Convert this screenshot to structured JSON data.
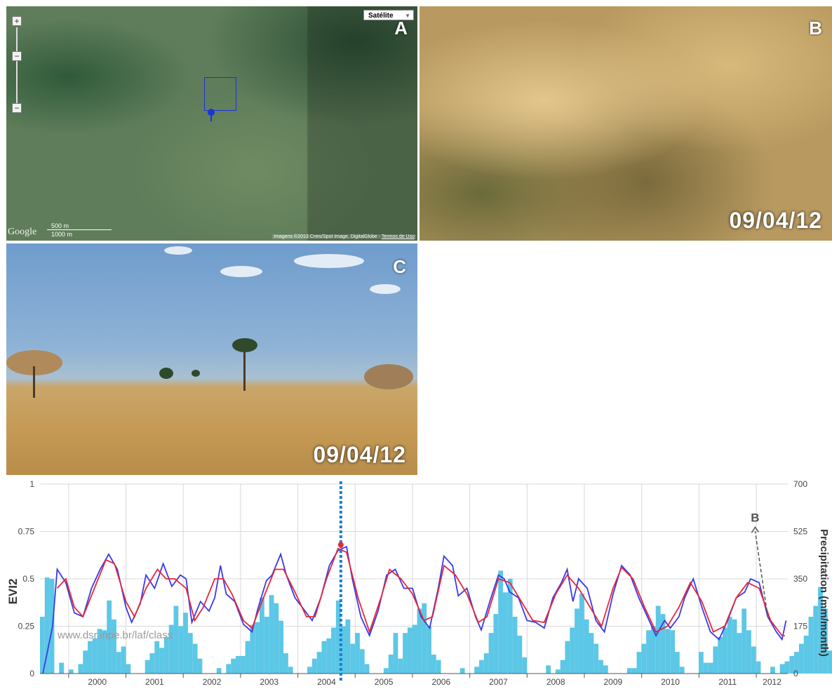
{
  "panels": {
    "a": {
      "letter": "A",
      "map_type": "Satélite",
      "zoom_in": "+",
      "zoom_mid": "−",
      "zoom_out": "−",
      "logo": "Google",
      "scale_small": "500 m",
      "scale_large": "1000 m",
      "attribution": "Imagens ©2013 Cnes/Spot Image, DigitalGlobe - ",
      "attribution_link": "Termos de Uso",
      "marker_icon": "map-pin-icon"
    },
    "b": {
      "letter": "B",
      "date": "09/04/12"
    },
    "c": {
      "letter": "C",
      "date": "09/04/12"
    }
  },
  "chart_data": {
    "type": "line",
    "watermark": "www.dsr.inpe.br/laf/class",
    "ylabel_left": "EVI2",
    "ylabel_right": "Precipitation (mm/month)",
    "ylim_left": [
      0,
      1
    ],
    "ylim_right": [
      0,
      700
    ],
    "yticks_left": [
      "0",
      "0.25",
      "0.5",
      "0.75",
      "1"
    ],
    "yticks_right": [
      "0",
      "175",
      "350",
      "525",
      "700"
    ],
    "x_years": [
      "2000",
      "2001",
      "2002",
      "2003",
      "2004",
      "2005",
      "2006",
      "2007",
      "2008",
      "2009",
      "2010",
      "2011",
      "2012"
    ],
    "xlim": [
      1999.5,
      2012.55
    ],
    "annotation": {
      "label": "B",
      "x": 2012.2,
      "y_start": 0.3,
      "y_end": 0.78
    },
    "marker_date": 2004.75,
    "marker_point": {
      "x": 2004.75,
      "y": 0.68
    },
    "grid": true,
    "series": [
      {
        "name": "",
        "color": "#3a3ae8",
        "kind": "evi2_raw",
        "points": [
          [
            1999.55,
            0.0
          ],
          [
            1999.72,
            0.25
          ],
          [
            1999.8,
            0.55
          ],
          [
            1999.95,
            0.48
          ],
          [
            2000.1,
            0.32
          ],
          [
            2000.25,
            0.3
          ],
          [
            2000.4,
            0.45
          ],
          [
            2000.55,
            0.55
          ],
          [
            2000.7,
            0.63
          ],
          [
            2000.85,
            0.55
          ],
          [
            2001.0,
            0.35
          ],
          [
            2001.1,
            0.27
          ],
          [
            2001.25,
            0.37
          ],
          [
            2001.35,
            0.52
          ],
          [
            2001.5,
            0.45
          ],
          [
            2001.65,
            0.58
          ],
          [
            2001.8,
            0.46
          ],
          [
            2001.95,
            0.52
          ],
          [
            2002.05,
            0.5
          ],
          [
            2002.15,
            0.27
          ],
          [
            2002.3,
            0.38
          ],
          [
            2002.45,
            0.33
          ],
          [
            2002.55,
            0.4
          ],
          [
            2002.65,
            0.57
          ],
          [
            2002.75,
            0.42
          ],
          [
            2002.9,
            0.38
          ],
          [
            2003.05,
            0.26
          ],
          [
            2003.2,
            0.22
          ],
          [
            2003.3,
            0.34
          ],
          [
            2003.45,
            0.49
          ],
          [
            2003.55,
            0.52
          ],
          [
            2003.7,
            0.63
          ],
          [
            2003.8,
            0.52
          ],
          [
            2003.95,
            0.4
          ],
          [
            2004.1,
            0.34
          ],
          [
            2004.25,
            0.28
          ],
          [
            2004.4,
            0.4
          ],
          [
            2004.55,
            0.57
          ],
          [
            2004.7,
            0.65
          ],
          [
            2004.85,
            0.67
          ],
          [
            2004.95,
            0.5
          ],
          [
            2005.1,
            0.3
          ],
          [
            2005.25,
            0.2
          ],
          [
            2005.4,
            0.33
          ],
          [
            2005.55,
            0.52
          ],
          [
            2005.7,
            0.55
          ],
          [
            2005.85,
            0.45
          ],
          [
            2006.0,
            0.45
          ],
          [
            2006.15,
            0.3
          ],
          [
            2006.3,
            0.24
          ],
          [
            2006.45,
            0.45
          ],
          [
            2006.55,
            0.62
          ],
          [
            2006.7,
            0.57
          ],
          [
            2006.8,
            0.41
          ],
          [
            2006.95,
            0.45
          ],
          [
            2007.1,
            0.3
          ],
          [
            2007.2,
            0.23
          ],
          [
            2007.35,
            0.38
          ],
          [
            2007.5,
            0.52
          ],
          [
            2007.6,
            0.5
          ],
          [
            2007.7,
            0.43
          ],
          [
            2007.85,
            0.4
          ],
          [
            2008.0,
            0.28
          ],
          [
            2008.15,
            0.27
          ],
          [
            2008.3,
            0.24
          ],
          [
            2008.45,
            0.4
          ],
          [
            2008.6,
            0.48
          ],
          [
            2008.7,
            0.55
          ],
          [
            2008.8,
            0.38
          ],
          [
            2008.9,
            0.5
          ],
          [
            2009.05,
            0.45
          ],
          [
            2009.2,
            0.28
          ],
          [
            2009.35,
            0.22
          ],
          [
            2009.5,
            0.42
          ],
          [
            2009.65,
            0.57
          ],
          [
            2009.8,
            0.52
          ],
          [
            2009.95,
            0.4
          ],
          [
            2010.1,
            0.3
          ],
          [
            2010.25,
            0.2
          ],
          [
            2010.4,
            0.28
          ],
          [
            2010.5,
            0.24
          ],
          [
            2010.65,
            0.3
          ],
          [
            2010.75,
            0.4
          ],
          [
            2010.9,
            0.5
          ],
          [
            2011.05,
            0.35
          ],
          [
            2011.2,
            0.22
          ],
          [
            2011.35,
            0.18
          ],
          [
            2011.5,
            0.28
          ],
          [
            2011.65,
            0.4
          ],
          [
            2011.8,
            0.43
          ],
          [
            2011.9,
            0.5
          ],
          [
            2012.05,
            0.48
          ],
          [
            2012.2,
            0.3
          ],
          [
            2012.35,
            0.22
          ],
          [
            2012.45,
            0.18
          ],
          [
            2012.52,
            0.28
          ]
        ]
      },
      {
        "name": "",
        "color": "#e8263a",
        "kind": "evi2_smooth",
        "points": [
          [
            1999.8,
            0.45
          ],
          [
            1999.95,
            0.5
          ],
          [
            2000.1,
            0.35
          ],
          [
            2000.25,
            0.3
          ],
          [
            2000.45,
            0.45
          ],
          [
            2000.65,
            0.6
          ],
          [
            2000.8,
            0.58
          ],
          [
            2001.0,
            0.38
          ],
          [
            2001.15,
            0.3
          ],
          [
            2001.35,
            0.45
          ],
          [
            2001.55,
            0.55
          ],
          [
            2001.7,
            0.5
          ],
          [
            2001.85,
            0.5
          ],
          [
            2002.05,
            0.45
          ],
          [
            2002.2,
            0.28
          ],
          [
            2002.35,
            0.35
          ],
          [
            2002.55,
            0.5
          ],
          [
            2002.7,
            0.5
          ],
          [
            2002.85,
            0.42
          ],
          [
            2003.05,
            0.28
          ],
          [
            2003.2,
            0.24
          ],
          [
            2003.4,
            0.4
          ],
          [
            2003.6,
            0.55
          ],
          [
            2003.75,
            0.55
          ],
          [
            2003.95,
            0.43
          ],
          [
            2004.15,
            0.3
          ],
          [
            2004.3,
            0.3
          ],
          [
            2004.5,
            0.5
          ],
          [
            2004.7,
            0.66
          ],
          [
            2004.85,
            0.64
          ],
          [
            2005.05,
            0.4
          ],
          [
            2005.25,
            0.22
          ],
          [
            2005.45,
            0.4
          ],
          [
            2005.6,
            0.55
          ],
          [
            2005.8,
            0.5
          ],
          [
            2006.0,
            0.42
          ],
          [
            2006.2,
            0.28
          ],
          [
            2006.35,
            0.3
          ],
          [
            2006.55,
            0.57
          ],
          [
            2006.75,
            0.52
          ],
          [
            2006.95,
            0.42
          ],
          [
            2007.15,
            0.27
          ],
          [
            2007.3,
            0.3
          ],
          [
            2007.5,
            0.5
          ],
          [
            2007.7,
            0.48
          ],
          [
            2007.9,
            0.38
          ],
          [
            2008.1,
            0.28
          ],
          [
            2008.3,
            0.27
          ],
          [
            2008.5,
            0.42
          ],
          [
            2008.7,
            0.52
          ],
          [
            2008.9,
            0.45
          ],
          [
            2009.1,
            0.35
          ],
          [
            2009.3,
            0.25
          ],
          [
            2009.5,
            0.45
          ],
          [
            2009.65,
            0.56
          ],
          [
            2009.85,
            0.5
          ],
          [
            2010.05,
            0.35
          ],
          [
            2010.25,
            0.22
          ],
          [
            2010.45,
            0.25
          ],
          [
            2010.65,
            0.35
          ],
          [
            2010.85,
            0.48
          ],
          [
            2011.05,
            0.38
          ],
          [
            2011.25,
            0.22
          ],
          [
            2011.45,
            0.25
          ],
          [
            2011.65,
            0.4
          ],
          [
            2011.85,
            0.48
          ],
          [
            2012.05,
            0.45
          ],
          [
            2012.25,
            0.28
          ],
          [
            2012.45,
            0.2
          ],
          [
            2012.5,
            0.2
          ]
        ]
      },
      {
        "name": "",
        "color": "#5cc7e6",
        "kind": "precipitation_bars",
        "start": 1999.5,
        "step": 0.0833,
        "values": [
          210,
          355,
          350,
          0,
          40,
          0,
          15,
          0,
          35,
          85,
          120,
          130,
          165,
          160,
          270,
          200,
          80,
          100,
          35,
          0,
          0,
          0,
          50,
          75,
          120,
          95,
          135,
          180,
          250,
          175,
          225,
          150,
          110,
          55,
          0,
          0,
          0,
          20,
          0,
          35,
          55,
          65,
          65,
          120,
          180,
          190,
          280,
          210,
          290,
          260,
          195,
          75,
          25,
          0,
          0,
          0,
          25,
          55,
          80,
          120,
          130,
          170,
          270,
          175,
          200,
          110,
          150,
          90,
          35,
          0,
          0,
          0,
          20,
          70,
          150,
          55,
          150,
          170,
          180,
          240,
          260,
          175,
          70,
          50,
          0,
          0,
          0,
          0,
          20,
          0,
          0,
          25,
          50,
          75,
          150,
          220,
          380,
          300,
          350,
          210,
          140,
          60,
          0,
          0,
          0,
          0,
          30,
          0,
          15,
          50,
          120,
          170,
          240,
          295,
          200,
          150,
          110,
          50,
          30,
          0,
          0,
          0,
          0,
          20,
          20,
          80,
          110,
          160,
          175,
          250,
          220,
          165,
          160,
          80,
          25,
          0,
          0,
          0,
          80,
          40,
          40,
          100,
          135,
          170,
          210,
          200,
          150,
          240,
          160,
          100,
          45,
          0,
          0,
          25,
          0,
          35,
          45,
          65,
          80,
          110,
          140,
          210,
          250,
          320,
          240,
          85,
          40,
          25,
          0,
          0,
          0,
          0,
          0,
          80,
          150,
          210,
          250,
          375,
          310,
          270,
          115,
          40
        ]
      }
    ]
  }
}
